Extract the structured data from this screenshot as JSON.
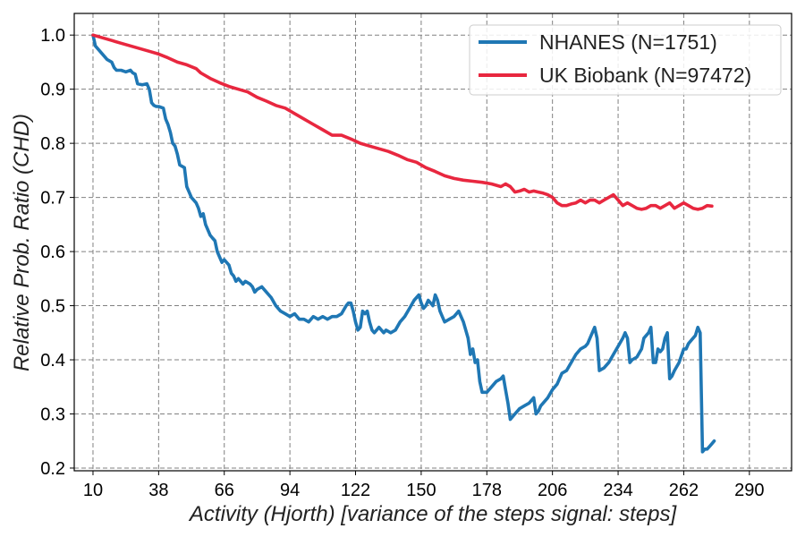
{
  "chart_data": {
    "type": "line",
    "title": "",
    "xlabel": "Activity (Hjorth) [variance of the steps signal: steps]",
    "ylabel": "Relative Prob. Ratio (CHD)",
    "xlim": [
      2,
      308
    ],
    "ylim": [
      0.195,
      1.04
    ],
    "xticks": [
      10,
      38,
      66,
      94,
      122,
      150,
      178,
      206,
      234,
      262,
      290
    ],
    "yticks": [
      0.2,
      0.3,
      0.4,
      0.5,
      0.6,
      0.7,
      0.8,
      0.9,
      1.0
    ],
    "grid": true,
    "legend_position": "top-right",
    "series": [
      {
        "name": "NHANES (N=1751)",
        "color": "#1f77b4",
        "points": [
          [
            10,
            1.0
          ],
          [
            11,
            0.98
          ],
          [
            12,
            0.975
          ],
          [
            14,
            0.965
          ],
          [
            16,
            0.955
          ],
          [
            18,
            0.95
          ],
          [
            19,
            0.94
          ],
          [
            20,
            0.935
          ],
          [
            22,
            0.935
          ],
          [
            24,
            0.932
          ],
          [
            26,
            0.935
          ],
          [
            27,
            0.93
          ],
          [
            28,
            0.928
          ],
          [
            29,
            0.91
          ],
          [
            31,
            0.908
          ],
          [
            33,
            0.91
          ],
          [
            34,
            0.9
          ],
          [
            35,
            0.875
          ],
          [
            36,
            0.87
          ],
          [
            37,
            0.868
          ],
          [
            38,
            0.868
          ],
          [
            40,
            0.865
          ],
          [
            41,
            0.845
          ],
          [
            42,
            0.835
          ],
          [
            43,
            0.82
          ],
          [
            44,
            0.8
          ],
          [
            45,
            0.795
          ],
          [
            46,
            0.78
          ],
          [
            47,
            0.76
          ],
          [
            49,
            0.755
          ],
          [
            50,
            0.72
          ],
          [
            51,
            0.71
          ],
          [
            52,
            0.7
          ],
          [
            54,
            0.69
          ],
          [
            55,
            0.68
          ],
          [
            56,
            0.665
          ],
          [
            57,
            0.67
          ],
          [
            58,
            0.65
          ],
          [
            60,
            0.63
          ],
          [
            61,
            0.625
          ],
          [
            62,
            0.62
          ],
          [
            63,
            0.6
          ],
          [
            64,
            0.59
          ],
          [
            65,
            0.58
          ],
          [
            66,
            0.585
          ],
          [
            68,
            0.575
          ],
          [
            69,
            0.56
          ],
          [
            70,
            0.555
          ],
          [
            71,
            0.545
          ],
          [
            72,
            0.55
          ],
          [
            74,
            0.54
          ],
          [
            75,
            0.545
          ],
          [
            77,
            0.54
          ],
          [
            78,
            0.535
          ],
          [
            79,
            0.525
          ],
          [
            80,
            0.53
          ],
          [
            82,
            0.535
          ],
          [
            84,
            0.525
          ],
          [
            86,
            0.515
          ],
          [
            88,
            0.5
          ],
          [
            90,
            0.49
          ],
          [
            92,
            0.485
          ],
          [
            94,
            0.48
          ],
          [
            96,
            0.485
          ],
          [
            98,
            0.475
          ],
          [
            100,
            0.475
          ],
          [
            102,
            0.47
          ],
          [
            104,
            0.48
          ],
          [
            106,
            0.475
          ],
          [
            108,
            0.48
          ],
          [
            110,
            0.475
          ],
          [
            112,
            0.48
          ],
          [
            114,
            0.48
          ],
          [
            116,
            0.485
          ],
          [
            118,
            0.5
          ],
          [
            119,
            0.505
          ],
          [
            120,
            0.505
          ],
          [
            121,
            0.49
          ],
          [
            122,
            0.47
          ],
          [
            123,
            0.455
          ],
          [
            124,
            0.46
          ],
          [
            125,
            0.49
          ],
          [
            126,
            0.485
          ],
          [
            127,
            0.49
          ],
          [
            128,
            0.47
          ],
          [
            129,
            0.455
          ],
          [
            130,
            0.45
          ],
          [
            132,
            0.46
          ],
          [
            134,
            0.45
          ],
          [
            135,
            0.455
          ],
          [
            137,
            0.45
          ],
          [
            139,
            0.455
          ],
          [
            141,
            0.47
          ],
          [
            143,
            0.48
          ],
          [
            145,
            0.495
          ],
          [
            147,
            0.51
          ],
          [
            149,
            0.52
          ],
          [
            150,
            0.505
          ],
          [
            151,
            0.495
          ],
          [
            152,
            0.5
          ],
          [
            153,
            0.51
          ],
          [
            154,
            0.505
          ],
          [
            155,
            0.5
          ],
          [
            156,
            0.52
          ],
          [
            157,
            0.51
          ],
          [
            158,
            0.49
          ],
          [
            159,
            0.48
          ],
          [
            160,
            0.47
          ],
          [
            162,
            0.475
          ],
          [
            164,
            0.48
          ],
          [
            166,
            0.49
          ],
          [
            168,
            0.47
          ],
          [
            170,
            0.44
          ],
          [
            171,
            0.41
          ],
          [
            172,
            0.42
          ],
          [
            173,
            0.395
          ],
          [
            174,
            0.4
          ],
          [
            175,
            0.36
          ],
          [
            176,
            0.34
          ],
          [
            178,
            0.34
          ],
          [
            180,
            0.35
          ],
          [
            182,
            0.36
          ],
          [
            184,
            0.365
          ],
          [
            185,
            0.37
          ],
          [
            186,
            0.345
          ],
          [
            187,
            0.32
          ],
          [
            188,
            0.29
          ],
          [
            190,
            0.3
          ],
          [
            192,
            0.31
          ],
          [
            194,
            0.315
          ],
          [
            196,
            0.32
          ],
          [
            198,
            0.33
          ],
          [
            199,
            0.3
          ],
          [
            200,
            0.305
          ],
          [
            201,
            0.315
          ],
          [
            202,
            0.32
          ],
          [
            204,
            0.33
          ],
          [
            206,
            0.345
          ],
          [
            208,
            0.355
          ],
          [
            210,
            0.375
          ],
          [
            212,
            0.38
          ],
          [
            214,
            0.395
          ],
          [
            216,
            0.41
          ],
          [
            218,
            0.42
          ],
          [
            220,
            0.425
          ],
          [
            221,
            0.43
          ],
          [
            222,
            0.44
          ],
          [
            224,
            0.46
          ],
          [
            225,
            0.44
          ],
          [
            226,
            0.38
          ],
          [
            228,
            0.385
          ],
          [
            230,
            0.395
          ],
          [
            232,
            0.41
          ],
          [
            234,
            0.425
          ],
          [
            236,
            0.44
          ],
          [
            237,
            0.45
          ],
          [
            238,
            0.44
          ],
          [
            239,
            0.395
          ],
          [
            240,
            0.4
          ],
          [
            242,
            0.405
          ],
          [
            244,
            0.42
          ],
          [
            245,
            0.44
          ],
          [
            246,
            0.445
          ],
          [
            247,
            0.45
          ],
          [
            248,
            0.46
          ],
          [
            249,
            0.395
          ],
          [
            250,
            0.395
          ],
          [
            251,
            0.42
          ],
          [
            252,
            0.415
          ],
          [
            253,
            0.42
          ],
          [
            254,
            0.44
          ],
          [
            255,
            0.45
          ],
          [
            256,
            0.365
          ],
          [
            257,
            0.37
          ],
          [
            258,
            0.38
          ],
          [
            260,
            0.395
          ],
          [
            262,
            0.42
          ],
          [
            263,
            0.42
          ],
          [
            264,
            0.43
          ],
          [
            266,
            0.44
          ],
          [
            267,
            0.445
          ],
          [
            268,
            0.46
          ],
          [
            269,
            0.45
          ],
          [
            270,
            0.23
          ],
          [
            271,
            0.235
          ],
          [
            272,
            0.235
          ],
          [
            273,
            0.24
          ],
          [
            274,
            0.245
          ],
          [
            275,
            0.25
          ]
        ]
      },
      {
        "name": "UK Biobank (N=97472)",
        "color": "#e8273f",
        "points": [
          [
            10,
            1.0
          ],
          [
            14,
            0.995
          ],
          [
            18,
            0.99
          ],
          [
            22,
            0.985
          ],
          [
            26,
            0.98
          ],
          [
            30,
            0.975
          ],
          [
            34,
            0.97
          ],
          [
            38,
            0.965
          ],
          [
            42,
            0.958
          ],
          [
            46,
            0.95
          ],
          [
            50,
            0.945
          ],
          [
            54,
            0.938
          ],
          [
            56,
            0.93
          ],
          [
            60,
            0.92
          ],
          [
            64,
            0.912
          ],
          [
            68,
            0.905
          ],
          [
            72,
            0.9
          ],
          [
            76,
            0.895
          ],
          [
            80,
            0.885
          ],
          [
            84,
            0.878
          ],
          [
            88,
            0.87
          ],
          [
            92,
            0.865
          ],
          [
            96,
            0.855
          ],
          [
            100,
            0.845
          ],
          [
            104,
            0.835
          ],
          [
            108,
            0.825
          ],
          [
            112,
            0.815
          ],
          [
            116,
            0.815
          ],
          [
            120,
            0.808
          ],
          [
            124,
            0.8
          ],
          [
            128,
            0.795
          ],
          [
            132,
            0.79
          ],
          [
            136,
            0.785
          ],
          [
            140,
            0.778
          ],
          [
            144,
            0.77
          ],
          [
            148,
            0.765
          ],
          [
            152,
            0.755
          ],
          [
            156,
            0.748
          ],
          [
            160,
            0.74
          ],
          [
            164,
            0.735
          ],
          [
            168,
            0.732
          ],
          [
            172,
            0.73
          ],
          [
            176,
            0.728
          ],
          [
            180,
            0.725
          ],
          [
            184,
            0.72
          ],
          [
            186,
            0.725
          ],
          [
            188,
            0.72
          ],
          [
            190,
            0.71
          ],
          [
            192,
            0.712
          ],
          [
            194,
            0.715
          ],
          [
            196,
            0.71
          ],
          [
            198,
            0.712
          ],
          [
            200,
            0.71
          ],
          [
            202,
            0.708
          ],
          [
            204,
            0.705
          ],
          [
            206,
            0.7
          ],
          [
            208,
            0.69
          ],
          [
            210,
            0.685
          ],
          [
            212,
            0.685
          ],
          [
            214,
            0.688
          ],
          [
            216,
            0.69
          ],
          [
            218,
            0.695
          ],
          [
            220,
            0.69
          ],
          [
            222,
            0.695
          ],
          [
            224,
            0.695
          ],
          [
            226,
            0.69
          ],
          [
            228,
            0.695
          ],
          [
            230,
            0.7
          ],
          [
            232,
            0.705
          ],
          [
            234,
            0.695
          ],
          [
            236,
            0.685
          ],
          [
            238,
            0.69
          ],
          [
            240,
            0.685
          ],
          [
            242,
            0.68
          ],
          [
            244,
            0.678
          ],
          [
            246,
            0.68
          ],
          [
            248,
            0.685
          ],
          [
            250,
            0.685
          ],
          [
            252,
            0.68
          ],
          [
            254,
            0.685
          ],
          [
            256,
            0.69
          ],
          [
            258,
            0.68
          ],
          [
            260,
            0.685
          ],
          [
            262,
            0.69
          ],
          [
            264,
            0.685
          ],
          [
            266,
            0.68
          ],
          [
            268,
            0.678
          ],
          [
            270,
            0.68
          ],
          [
            272,
            0.685
          ],
          [
            274,
            0.684
          ]
        ]
      }
    ]
  }
}
